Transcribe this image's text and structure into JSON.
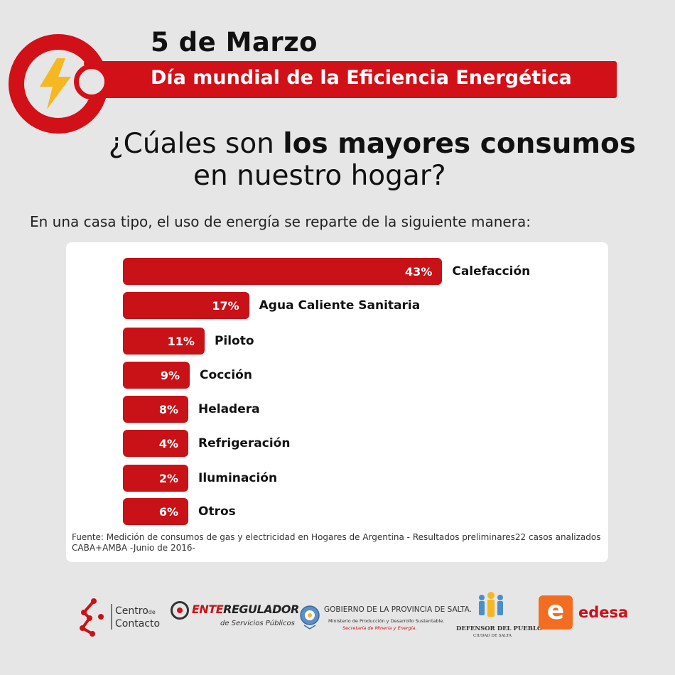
{
  "header": {
    "date": "5 de Marzo",
    "day_name": "Día mundial de la Eficiencia Energética",
    "question_part1_regular": "¿Cúales son ",
    "question_part1_bold": "los mayores consumos",
    "question_part2": "en nuestro hogar?"
  },
  "subtitle": "En una casa tipo, el uso de energía se reparte de la siguiente manera:",
  "chart_data": {
    "type": "bar",
    "orientation": "horizontal",
    "categories": [
      "Calefacción",
      "Agua Caliente Sanitaria",
      "Piloto",
      "Cocción",
      "Heladera",
      "Refrigeración",
      "Iluminación",
      "Otros"
    ],
    "values": [
      43,
      17,
      11,
      9,
      8,
      4,
      2,
      6
    ],
    "value_labels": [
      "43%",
      "17%",
      "11%",
      "9%",
      "8%",
      "4%",
      "2%",
      "6%"
    ],
    "unit": "%",
    "title": "",
    "xlabel": "",
    "ylabel": "",
    "grid": false,
    "legend": "none",
    "bar_color": "#c81217"
  },
  "source_note": "Fuente: Medición de consumos de gas y electricidad en Hogares de Argentina - Resultados preliminares22 casos analizados CABA+AMBA -Junio de 2016-",
  "colors": {
    "accent": "#d21018",
    "bar": "#c81217",
    "bolt": "#f6b721",
    "background": "#e6e6e6"
  },
  "logos": {
    "centro_line1": "Centro",
    "centro_de": "de",
    "centro_line2": "Contacto",
    "ente_red": "ENTE",
    "ente_dark": "REGULADOR",
    "ente_sub": "de Servicios Públicos",
    "gob_line1": "GOBIERNO DE LA PROVINCIA DE SALTA.",
    "gob_line2": "Ministerio de Producción y Desarrollo Sustentable.",
    "gob_line3": "Secretaría de Minería y Energía.",
    "defensor_line1": "DEFENSOR DEL PUEBLO",
    "defensor_line2": "CIUDAD DE SALTA",
    "edesa_letter": "e",
    "edesa_word": "edesa"
  }
}
